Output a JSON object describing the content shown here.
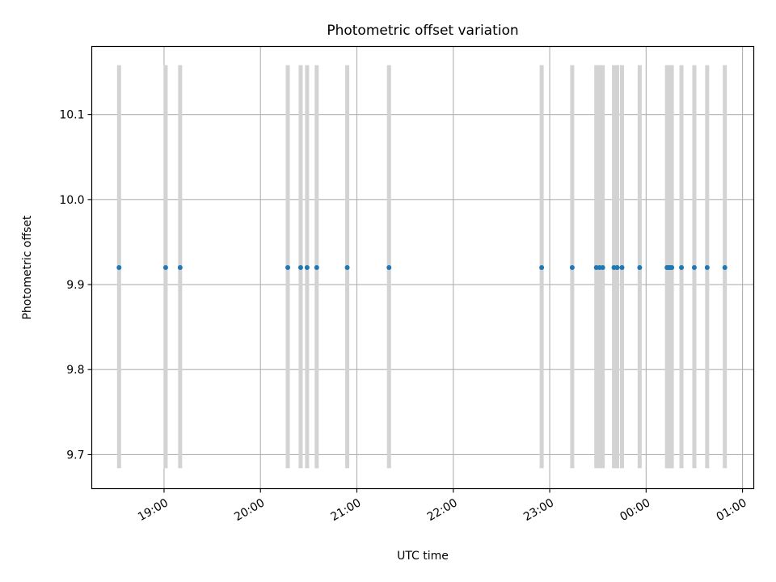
{
  "chart_data": {
    "type": "scatter",
    "title": "Photometric offset variation",
    "xlabel": "UTC time",
    "ylabel": "Photometric offset",
    "grid": true,
    "x_tick_labels": [
      "19:00",
      "20:00",
      "21:00",
      "22:00",
      "23:00",
      "00:00",
      "01:00"
    ],
    "x_ticks": [
      "19:00",
      "20:00",
      "21:00",
      "22:00",
      "23:00",
      "24:00",
      "25:00"
    ],
    "xlim": [
      "18:15",
      "25:07"
    ],
    "y_ticks": [
      9.7,
      9.8,
      9.9,
      10.0,
      10.1
    ],
    "y_tick_labels": [
      "9.7",
      "9.8",
      "9.9",
      "10.0",
      "10.1"
    ],
    "ylim": [
      9.66,
      10.18
    ],
    "error_bar_range": [
      9.684,
      10.158
    ],
    "points": [
      {
        "x": "18:32",
        "y": 9.92
      },
      {
        "x": "19:01",
        "y": 9.92
      },
      {
        "x": "19:10",
        "y": 9.92
      },
      {
        "x": "20:17",
        "y": 9.92
      },
      {
        "x": "20:25",
        "y": 9.92
      },
      {
        "x": "20:29",
        "y": 9.92
      },
      {
        "x": "20:35",
        "y": 9.92
      },
      {
        "x": "20:54",
        "y": 9.92
      },
      {
        "x": "21:20",
        "y": 9.92
      },
      {
        "x": "22:55",
        "y": 9.92
      },
      {
        "x": "23:14",
        "y": 9.92
      },
      {
        "x": "23:29",
        "y": 9.92
      },
      {
        "x": "23:31",
        "y": 9.92
      },
      {
        "x": "23:33",
        "y": 9.92
      },
      {
        "x": "23:40",
        "y": 9.92
      },
      {
        "x": "23:42",
        "y": 9.92
      },
      {
        "x": "23:45",
        "y": 9.92
      },
      {
        "x": "23:56",
        "y": 9.92
      },
      {
        "x": "24:13",
        "y": 9.92
      },
      {
        "x": "24:14",
        "y": 9.92
      },
      {
        "x": "24:15",
        "y": 9.92
      },
      {
        "x": "24:16",
        "y": 9.92
      },
      {
        "x": "24:22",
        "y": 9.92
      },
      {
        "x": "24:30",
        "y": 9.92
      },
      {
        "x": "24:38",
        "y": 9.92
      },
      {
        "x": "24:49",
        "y": 9.92
      }
    ],
    "colors": {
      "points": "#1f77b4",
      "error_bars": "#d3d3d3",
      "grid": "#b0b0b0",
      "axes": "#000000"
    }
  }
}
